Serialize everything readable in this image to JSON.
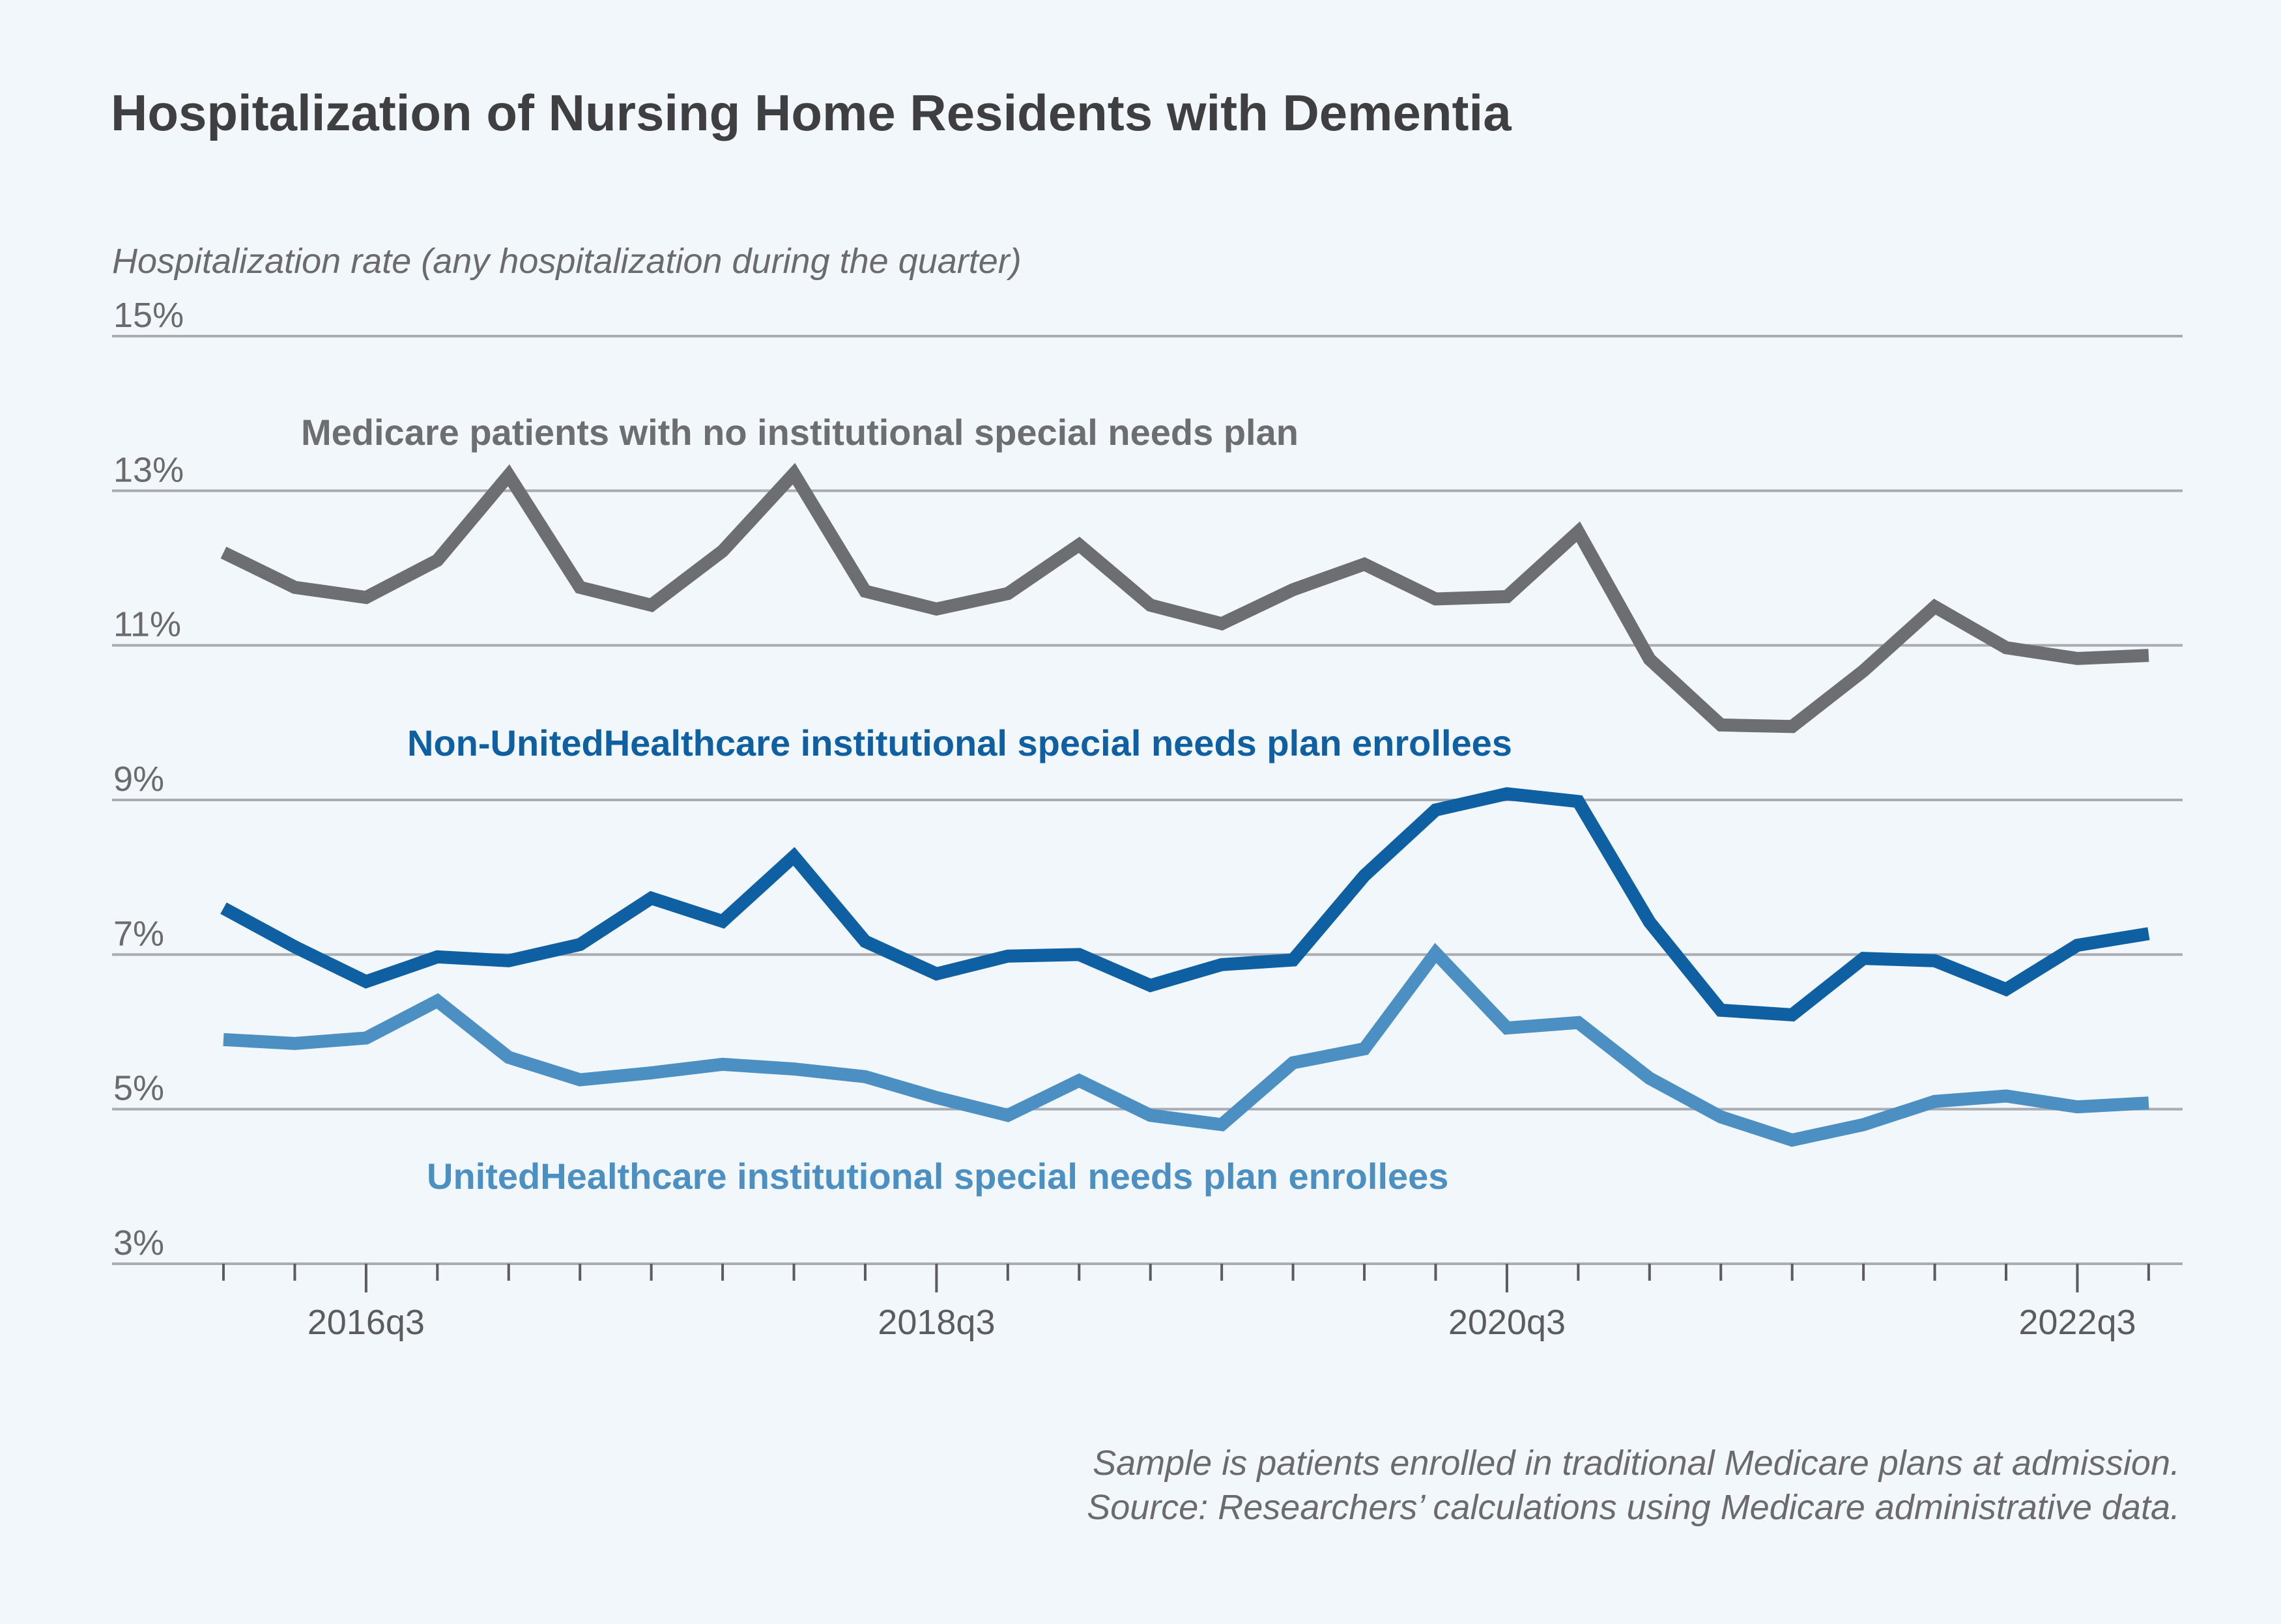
{
  "chart_data": {
    "type": "line",
    "title": "Hospitalization of Nursing Home Residents with Dementia",
    "ylabel": "Hospitalization rate (any hospitalization during the quarter)",
    "ylim": [
      3,
      15
    ],
    "yticks": [
      3,
      5,
      7,
      9,
      11,
      13,
      15
    ],
    "ytick_labels": [
      "3%",
      "5%",
      "7%",
      "9%",
      "11%",
      "13%",
      "15%"
    ],
    "xtick_labels": [
      "2016q3",
      "2018q3",
      "2020q3",
      "2022q3"
    ],
    "xtick_label_index": [
      2,
      10,
      18,
      26
    ],
    "n_points": 28,
    "grid": true,
    "series": [
      {
        "name": "Medicare patients with no institutional special needs plan",
        "color": "#6d6e71",
        "values": [
          12.2,
          11.75,
          11.62,
          12.1,
          13.2,
          11.75,
          11.52,
          12.22,
          13.22,
          11.7,
          11.47,
          11.67,
          12.3,
          11.52,
          11.28,
          11.72,
          12.05,
          11.6,
          11.63,
          12.47,
          10.82,
          9.97,
          9.95,
          10.67,
          11.5,
          10.97,
          10.83,
          10.87
        ]
      },
      {
        "name": "Non-UnitedHealthcare institutional special needs plan enrollees",
        "color": "#0f5fa3",
        "values": [
          7.6,
          7.1,
          6.65,
          6.97,
          6.92,
          7.13,
          7.73,
          7.43,
          8.27,
          7.17,
          6.75,
          6.98,
          7.0,
          6.6,
          6.87,
          6.93,
          8.02,
          8.87,
          9.08,
          8.98,
          7.42,
          6.28,
          6.22,
          6.95,
          6.92,
          6.55,
          7.12,
          7.27
        ]
      },
      {
        "name": "UnitedHealthcare institutional special needs plan enrollees",
        "color": "#4b8fc3",
        "values": [
          5.9,
          5.85,
          5.92,
          6.4,
          5.67,
          5.38,
          5.47,
          5.58,
          5.52,
          5.42,
          5.15,
          4.92,
          5.37,
          4.92,
          4.8,
          5.6,
          5.78,
          7.02,
          6.05,
          6.12,
          5.4,
          4.9,
          4.6,
          4.8,
          5.1,
          5.17,
          5.03,
          5.08
        ]
      }
    ],
    "annotations": [
      "Medicare patients with no institutional special needs plan",
      "Non-UnitedHealthcare institutional special needs plan enrollees",
      "UnitedHealthcare institutional special needs plan enrollees"
    ]
  },
  "notes": [
    "Sample is patients enrolled in traditional Medicare plans at admission.",
    "Source: Researchers’ calculations using Medicare administrative data."
  ]
}
